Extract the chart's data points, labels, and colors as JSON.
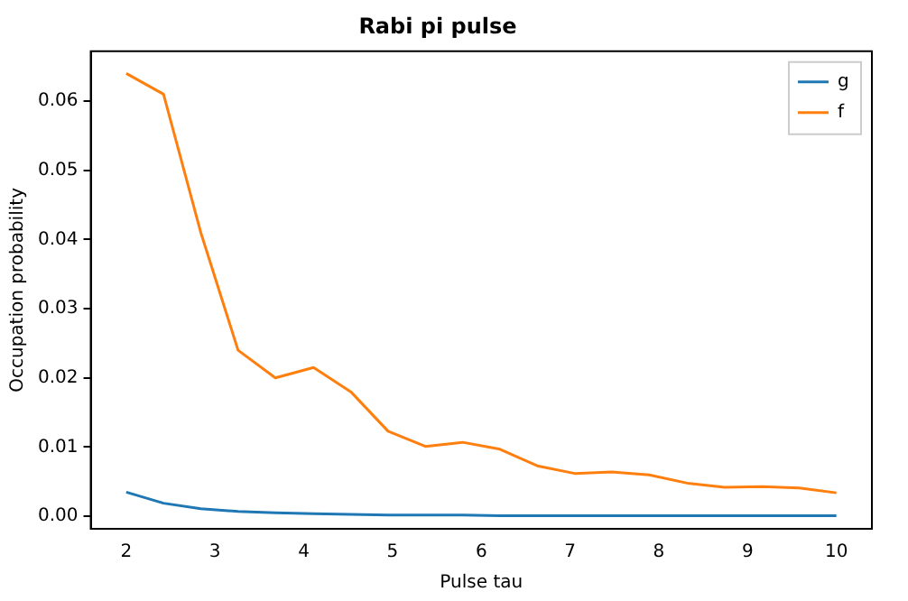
{
  "chart_data": {
    "type": "line",
    "title": "Rabi pi pulse",
    "xlabel": "Pulse tau",
    "ylabel": "Occupation probability",
    "x": [
      2,
      2.42,
      2.84,
      3.26,
      3.68,
      4.11,
      4.53,
      4.95,
      5.37,
      5.79,
      6.21,
      6.63,
      7.05,
      7.47,
      7.89,
      8.32,
      8.74,
      9.16,
      9.58,
      10
    ],
    "series": [
      {
        "name": "g",
        "color": "#1f77b4",
        "values": [
          0.0035,
          0.0019,
          0.0011,
          0.0007,
          0.0005,
          0.0004,
          0.0003,
          0.0002,
          0.0002,
          0.0002,
          0.0001,
          0.0001,
          0.0001,
          0.0001,
          0.0001,
          0.0001,
          0.0001,
          0.0001,
          0.0001,
          0.0001
        ]
      },
      {
        "name": "f",
        "color": "#ff7f0e",
        "values": [
          0.064,
          0.061,
          0.041,
          0.024,
          0.02,
          0.0215,
          0.018,
          0.0123,
          0.0101,
          0.0107,
          0.0097,
          0.0073,
          0.0062,
          0.0064,
          0.006,
          0.0048,
          0.0042,
          0.0043,
          0.0041,
          0.0034
        ]
      }
    ],
    "xlim": [
      1.6,
      10.4
    ],
    "xticks": [
      2,
      3,
      4,
      5,
      6,
      7,
      8,
      9,
      10
    ],
    "ylim": [
      -0.0018,
      0.0672
    ],
    "yticks": [
      {
        "value": 0,
        "label": "0.00"
      },
      {
        "value": 0.01,
        "label": "0.01"
      },
      {
        "value": 0.02,
        "label": "0.02"
      },
      {
        "value": 0.03,
        "label": "0.03"
      },
      {
        "value": 0.04,
        "label": "0.04"
      },
      {
        "value": 0.05,
        "label": "0.05"
      },
      {
        "value": 0.06,
        "label": "0.06"
      }
    ],
    "legend": "top right",
    "grid": false,
    "marker": "none",
    "line_style": "solid"
  }
}
